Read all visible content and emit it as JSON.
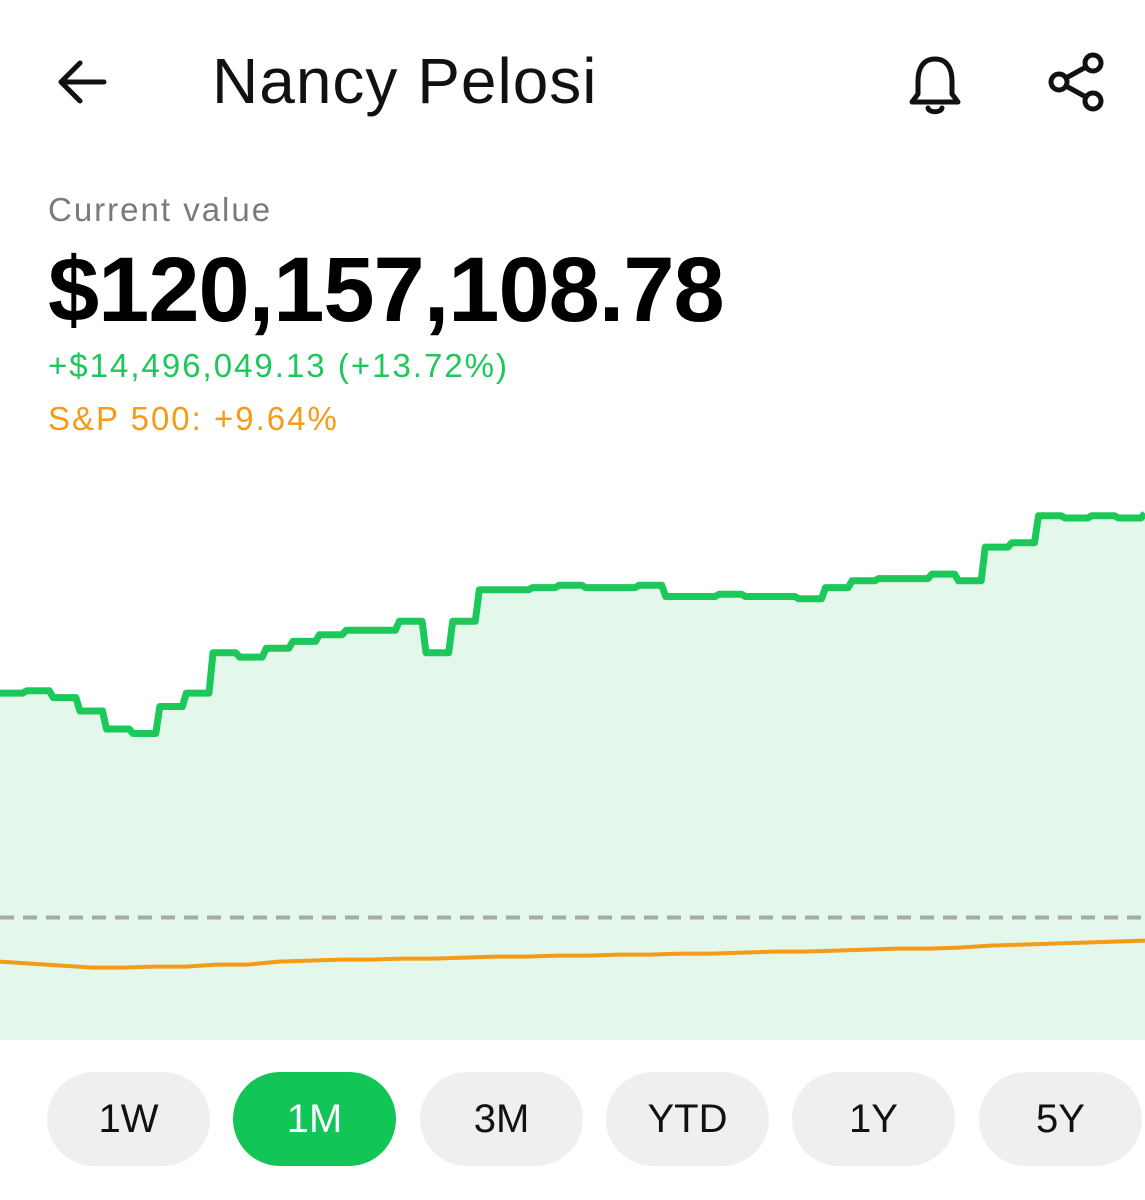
{
  "header": {
    "title": "Nancy Pelosi",
    "icons": {
      "back": "arrow-left-icon",
      "alert": "bell-icon",
      "share": "share-icon"
    }
  },
  "summary": {
    "label": "Current value",
    "value": "$120,157,108.78",
    "change": "+$14,496,049.13 (+13.72%)",
    "benchmark": "S&P 500: +9.64%"
  },
  "colors": {
    "portfolio": "#1cc85a",
    "portfolio_fill": "#e3f8ea",
    "benchmark": "#f49b17",
    "baseline": "#a8a8a8",
    "active_pill": "#12c557"
  },
  "chart_data": {
    "type": "line",
    "grid": false,
    "baseline": "dashed",
    "series": [
      {
        "name": "portfolio",
        "values": [
          10.0,
          10.1,
          9.8,
          9.2,
          8.4,
          8.2,
          9.4,
          10.0,
          11.8,
          11.6,
          12.0,
          12.3,
          12.6,
          12.8,
          12.8,
          13.2,
          11.8,
          13.2,
          14.6,
          14.6,
          14.7,
          14.8,
          14.7,
          14.7,
          14.8,
          14.3,
          14.3,
          14.4,
          14.3,
          14.3,
          14.2,
          14.7,
          15.0,
          15.1,
          15.1,
          15.3,
          15.0,
          16.5,
          16.7,
          17.9,
          17.8,
          17.9,
          17.8,
          18.0
        ]
      },
      {
        "name": "S&P 500",
        "values": [
          0.0,
          -0.2,
          -0.4,
          -0.6,
          -0.6,
          -0.5,
          -0.5,
          -0.3,
          -0.3,
          0.0,
          0.1,
          0.2,
          0.2,
          0.3,
          0.3,
          0.4,
          0.5,
          0.5,
          0.6,
          0.6,
          0.7,
          0.7,
          0.8,
          0.8,
          0.9,
          1.0,
          1.0,
          1.1,
          1.2,
          1.3,
          1.3,
          1.4,
          1.6,
          1.7,
          1.8,
          1.9,
          2.0,
          2.1
        ]
      }
    ]
  },
  "ranges": {
    "items": [
      "1W",
      "1M",
      "3M",
      "YTD",
      "1Y",
      "5Y"
    ],
    "selected": "1M"
  }
}
